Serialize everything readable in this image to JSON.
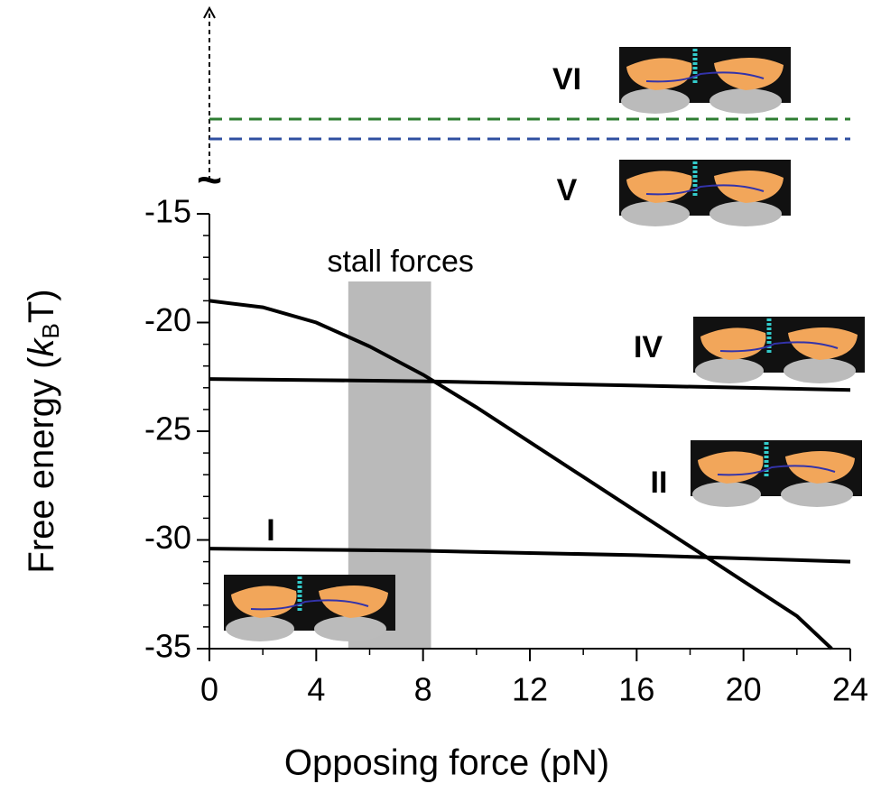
{
  "chart_data": {
    "type": "line",
    "xlabel": "Opposing force (pN)",
    "ylabel": {
      "text": "Free energy (",
      "italic": "k",
      "sub": "B",
      "tail": "T)"
    },
    "xlim": [
      0,
      24
    ],
    "xticks": [
      0,
      4,
      8,
      12,
      16,
      20,
      24
    ],
    "ylim": [
      -35,
      -15
    ],
    "yticks": [
      -35,
      -30,
      -25,
      -20,
      -15
    ],
    "series": [
      {
        "name": "IV",
        "color": "#000000",
        "x": [
          0,
          4,
          8,
          12,
          16,
          20,
          24
        ],
        "values": [
          -22.6,
          -22.65,
          -22.7,
          -22.8,
          -22.9,
          -23.0,
          -23.1
        ]
      },
      {
        "name": "II",
        "color": "#000000",
        "x": [
          0,
          2,
          4,
          6,
          8,
          10,
          12,
          14,
          16,
          18,
          20,
          22,
          23.3
        ],
        "values": [
          -19.0,
          -19.3,
          -20.0,
          -21.1,
          -22.4,
          -23.9,
          -25.5,
          -27.1,
          -28.7,
          -30.3,
          -31.9,
          -33.5,
          -35.0
        ]
      },
      {
        "name": "I",
        "color": "#000000",
        "x": [
          0,
          4,
          8,
          12,
          16,
          20,
          24
        ],
        "values": [
          -30.4,
          -30.45,
          -30.5,
          -30.6,
          -30.7,
          -30.85,
          -31.0
        ]
      }
    ],
    "band": {
      "label": "stall forces",
      "x": [
        5.2,
        8.3
      ],
      "color": "#a9a9a9"
    },
    "above_break": [
      {
        "name": "VI",
        "color": "#2e7d32"
      },
      {
        "name": "V",
        "color": "#2f4fa0"
      }
    ],
    "break_mark": "~"
  }
}
